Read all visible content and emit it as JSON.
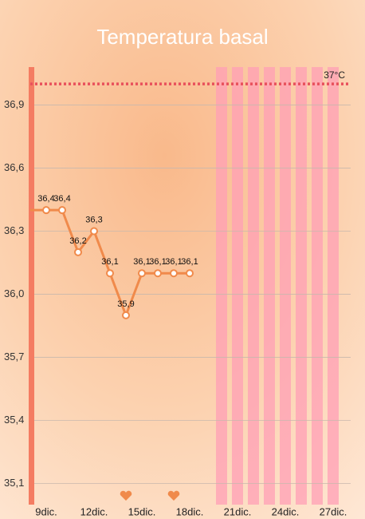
{
  "chart_data": {
    "type": "line",
    "title": "Temperatura basal",
    "categories": [
      null,
      "9dic.",
      null,
      null,
      "12dic.",
      null,
      null,
      "15dic.",
      null,
      null,
      "18dic.",
      null,
      null,
      "21dic.",
      null,
      null,
      "24dic.",
      null,
      null,
      "27dic.",
      null
    ],
    "values": [
      36.4,
      36.4,
      36.4,
      36.2,
      36.3,
      36.1,
      35.9,
      36.1,
      36.1,
      36.1,
      36.1,
      null,
      null,
      null,
      null,
      null,
      null,
      null,
      null,
      null,
      null
    ],
    "value_labels": [
      null,
      "36,4",
      "36,4",
      "36,2",
      "36,3",
      "36,1",
      "35,9",
      "36,1",
      "36,1",
      "36,1",
      "36,1",
      null,
      null,
      null,
      null,
      null,
      null,
      null,
      null,
      null,
      null
    ],
    "color": "#f08a4b",
    "ylim": [
      35.0,
      37.08
    ],
    "yticks": [
      {
        "value": 35.1,
        "label": "35,1"
      },
      {
        "value": 35.4,
        "label": "35,4"
      },
      {
        "value": 35.7,
        "label": "35,7"
      },
      {
        "value": 36.0,
        "label": "36,0"
      },
      {
        "value": 36.3,
        "label": "36,3"
      },
      {
        "value": 36.6,
        "label": "36,6"
      },
      {
        "value": 36.9,
        "label": "36,9"
      }
    ],
    "grid": true,
    "reference_line": {
      "value": 37,
      "label": "37°C",
      "color": "#e8505b"
    },
    "highlight_days": [
      12,
      13,
      14,
      15,
      16,
      17,
      18,
      19
    ],
    "heart_days": [
      6,
      9
    ]
  }
}
